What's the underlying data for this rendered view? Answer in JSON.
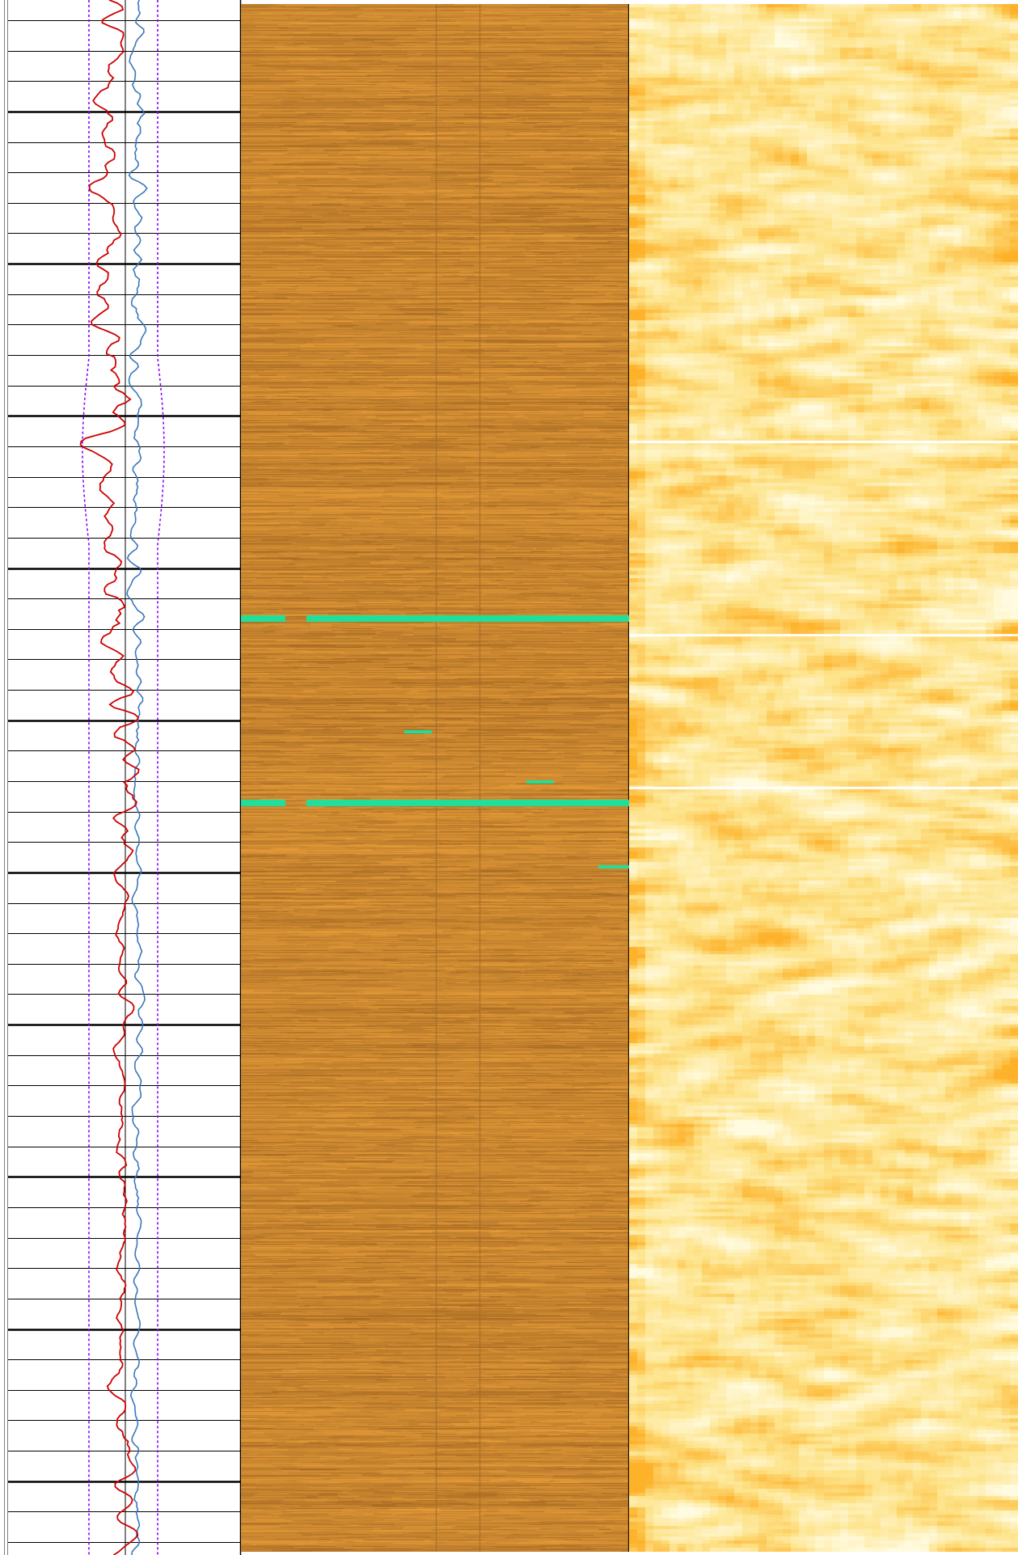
{
  "log_track": {
    "colors": {
      "curve_primary": "#cc0000",
      "curve_secondary": "#3a78b8",
      "envelope": "#8b00ff",
      "grid_major": "#000000",
      "grid_minor": "#000000",
      "center_line": "#000000"
    },
    "grid": {
      "minor_count": 51,
      "major_every": 5
    }
  },
  "image_track": {
    "colors": {
      "base": "#c98630",
      "light": "#f2a53a",
      "dark": "#9a5f1e",
      "separator": "#9b6a2c",
      "flag": "#1fe09a"
    },
    "fractures": [
      {
        "depth": 0.395,
        "extent": [
          0.0,
          1.0
        ],
        "gap": [
          0.115,
          0.168
        ],
        "thickness": "thick"
      },
      {
        "depth": 0.514,
        "extent": [
          0.0,
          1.0
        ],
        "gap": [
          0.115,
          0.168
        ],
        "thickness": "thick"
      },
      {
        "depth": 0.469,
        "extent": [
          0.42,
          0.49
        ],
        "thickness": "thin"
      },
      {
        "depth": 0.5015,
        "extent": [
          0.735,
          0.805
        ],
        "thickness": "thin"
      },
      {
        "depth": 0.5565,
        "extent": [
          0.92,
          1.0
        ],
        "thickness": "thin"
      }
    ]
  },
  "amplitude_track": {
    "colors": {
      "low": "#fffbe0",
      "mid": "#fde38a",
      "high": "#fdb22a"
    },
    "breaks": [
      0.282,
      0.407,
      0.506
    ]
  }
}
